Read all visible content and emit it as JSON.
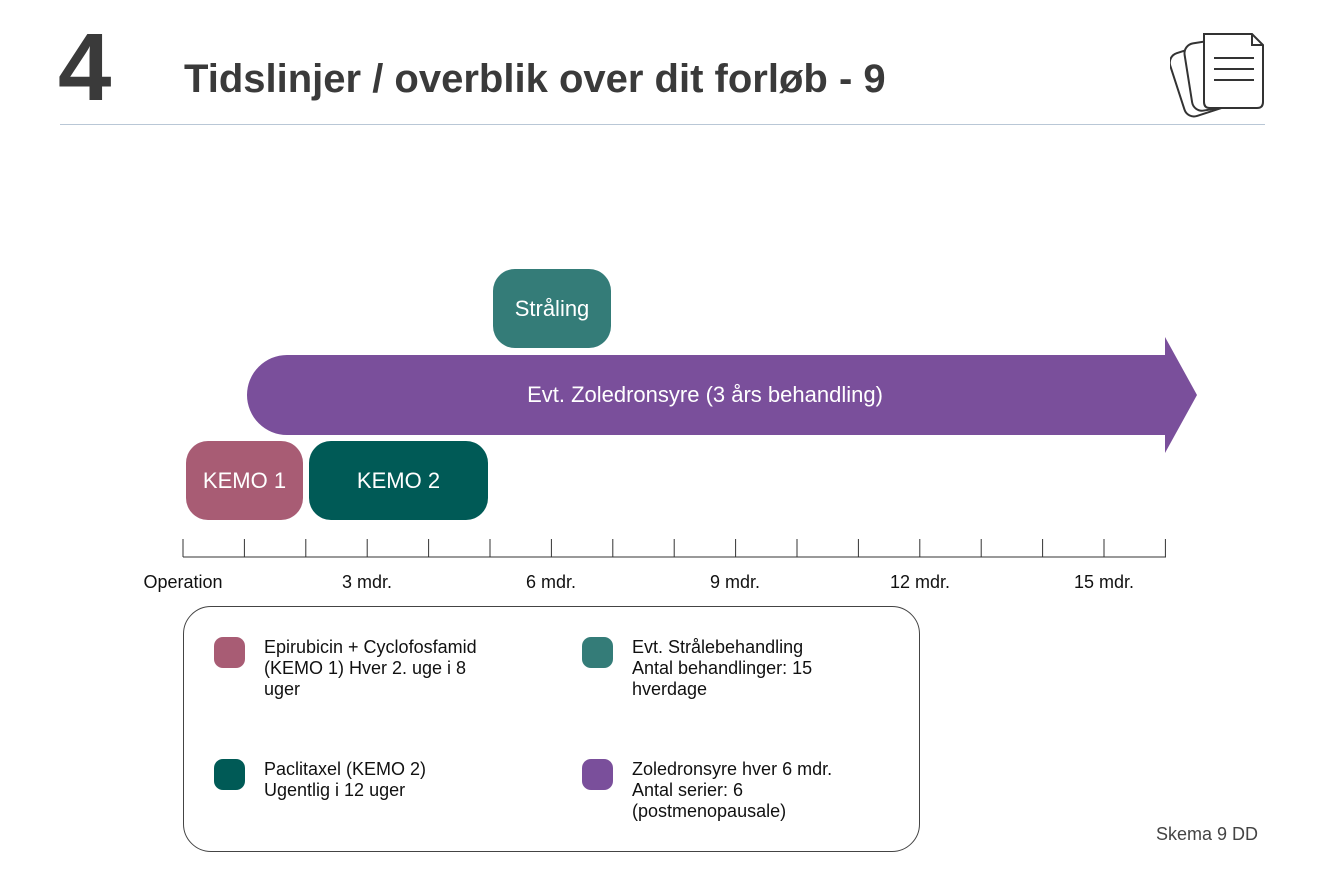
{
  "header": {
    "section_number": "4",
    "title": "Tidslinjer / overblik over dit forløb - 9",
    "icon": "documents-icon"
  },
  "blocks": {
    "kemo1": "KEMO 1",
    "kemo2": "KEMO 2",
    "straaling": "Stråling",
    "zoledronsyre": "Evt. Zoledronsyre (3 års behandling)"
  },
  "timeline": {
    "labels": [
      "Operation",
      "3 mdr.",
      "6 mdr.",
      "9 mdr.",
      "12 mdr.",
      "15 mdr."
    ]
  },
  "legend": {
    "items": [
      {
        "text": "Epirubicin + Cyclofosfamid\n(KEMO 1) Hver 2. uge i 8\nuger",
        "color": "#a85c74"
      },
      {
        "text": "Evt. Strålebehandling\nAntal behandlinger: 15\nhverdage",
        "color": "#347c78"
      },
      {
        "text": "Paclitaxel (KEMO 2)\nUgentlig i 12 uger",
        "color": "#005a56"
      },
      {
        "text": "Zoledronsyre hver 6 mdr.\nAntal serier: 6\n(postmenopausale)",
        "color": "#7a4f9b"
      }
    ]
  },
  "colors": {
    "kemo1": "#a85c74",
    "kemo2": "#005a56",
    "straaling": "#347c78",
    "zoledronsyre": "#7a4f9b"
  },
  "footer": {
    "note": "Skema 9 DD"
  }
}
